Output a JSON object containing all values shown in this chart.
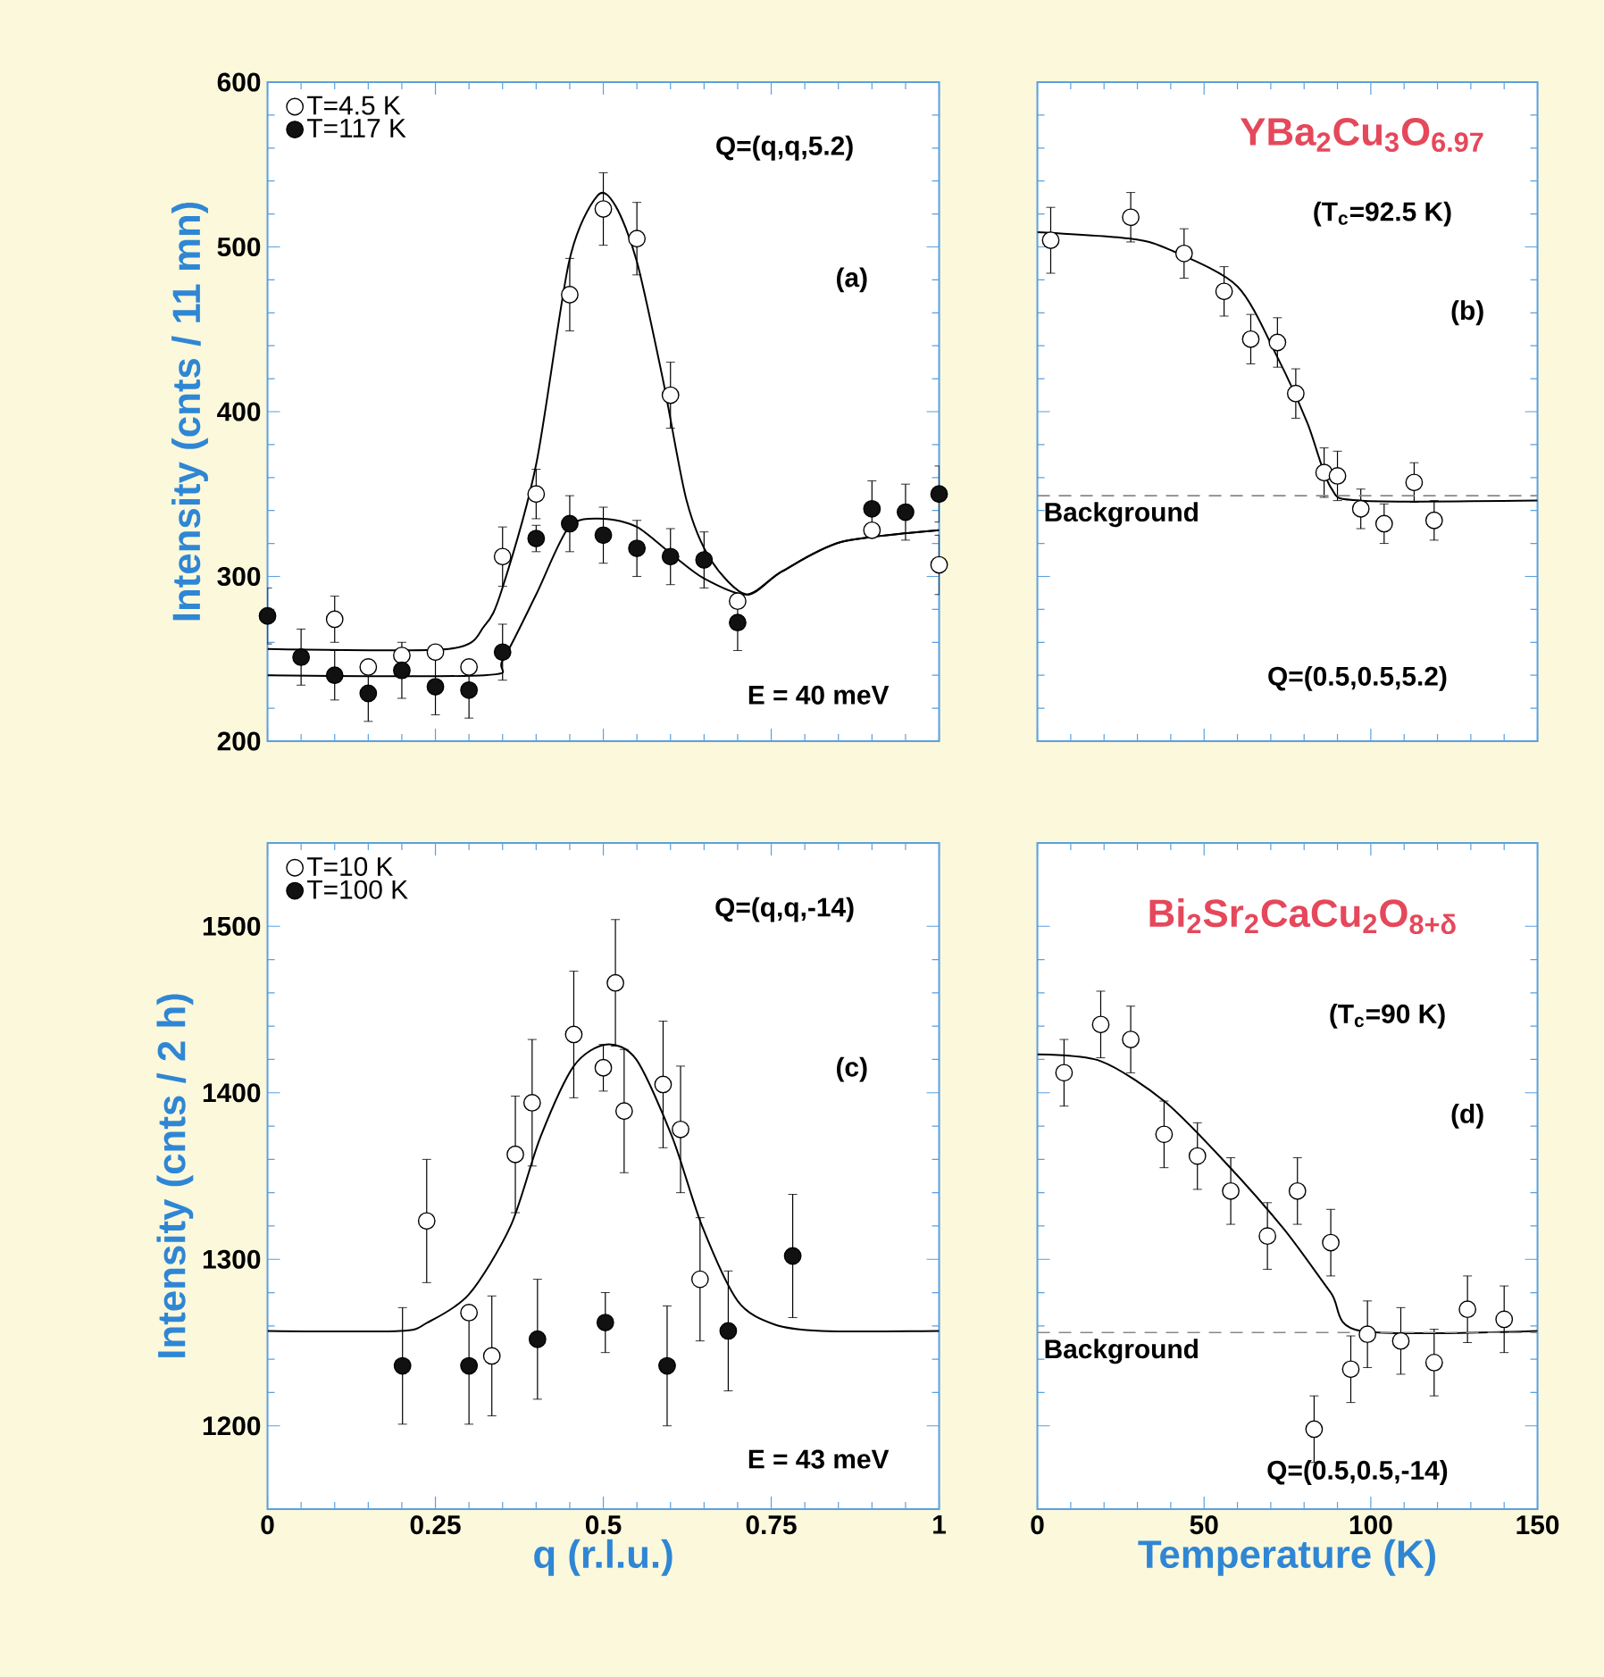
{
  "chart_data": [
    {
      "type": "scatter",
      "xlim": [
        0,
        1
      ],
      "xticks": [
        0,
        0.25,
        0.5,
        0.75,
        1
      ],
      "ylim": [
        200,
        600
      ],
      "yticks": [
        200,
        300,
        400,
        500,
        600
      ],
      "tick_labels": "y",
      "ylabel": "Intensity (cnts / 11 mn)",
      "legend": "top left",
      "marker": "circle",
      "annotations": [
        "Q=(q,q,5.2)",
        "(a)",
        "E = 40 meV"
      ],
      "series": [
        {
          "name": "T=4.5 K",
          "color": "#ffffff",
          "x": [
            0.1,
            0.15,
            0.2,
            0.25,
            0.3,
            0.35,
            0.4,
            0.45,
            0.5,
            0.55,
            0.6,
            0.7,
            0.9,
            1.0
          ],
          "values": [
            274,
            245,
            252,
            254,
            245,
            312,
            350,
            471,
            523,
            505,
            410,
            285,
            328,
            307
          ],
          "errors": [
            14,
            null,
            null,
            null,
            null,
            18,
            15,
            22,
            22,
            22,
            20,
            null,
            null,
            18
          ]
        },
        {
          "name": "T=117 K",
          "color": "#111111",
          "x": [
            0,
            0.05,
            0.1,
            0.15,
            0.2,
            0.25,
            0.3,
            0.35,
            0.4,
            0.45,
            0.5,
            0.55,
            0.6,
            0.65,
            0.7,
            0.9,
            0.95,
            1.0
          ],
          "values": [
            276,
            251,
            240,
            229,
            243,
            233,
            231,
            254,
            323,
            332,
            325,
            317,
            312,
            310,
            272,
            341,
            339,
            350
          ],
          "errors": [
            17,
            17,
            15,
            17,
            17,
            17,
            17,
            17,
            8,
            17,
            17,
            17,
            17,
            17,
            17,
            17,
            17,
            17
          ]
        },
        {
          "type": "line",
          "color": "#000000",
          "marker": "none",
          "x": [
            0,
            0.27,
            0.323,
            0.349,
            0.4,
            0.449,
            0.491,
            0.518,
            0.55,
            0.589,
            0.624,
            0.66,
            0.713,
            0.766,
            0.855,
            1
          ],
          "values": [
            256,
            256,
            270,
            292,
            368,
            491,
            531,
            525,
            491,
            419,
            346,
            310,
            289,
            303,
            321,
            328
          ]
        },
        {
          "type": "line",
          "color": "#000000",
          "marker": "none",
          "x": [
            0,
            0.323,
            0.35,
            0.4,
            0.449,
            0.5,
            0.55,
            0.6,
            0.649,
            0.713,
            0.766,
            0.855,
            1
          ],
          "values": [
            240,
            240,
            249,
            289,
            330,
            335,
            330,
            314,
            299,
            289,
            303,
            321,
            328
          ]
        }
      ]
    },
    {
      "type": "scatter",
      "title": "YBa$_{2}$Cu$_{3}$O$_{6.97}$",
      "xlim": [
        0,
        150
      ],
      "xticks": [
        0,
        50,
        100,
        150
      ],
      "ylim": [
        200,
        600
      ],
      "yticks": [
        200,
        300,
        400,
        500,
        600
      ],
      "tick_labels": false,
      "marker": "circle",
      "annotations": [
        "(T$_{c}$=92.5 K)",
        "(b)",
        "Q=(0.5,0.5,5.2)"
      ],
      "ref_lines": [
        {
          "axis": "y",
          "value": 349,
          "label": "Background",
          "line_style": "dashed",
          "color": "#888888"
        }
      ],
      "series": [
        {
          "color": "#ffffff",
          "x": [
            4,
            28,
            44,
            56,
            64,
            72,
            77.5,
            86,
            90,
            97,
            104,
            113,
            119
          ],
          "values": [
            504,
            518,
            496,
            473,
            444,
            442,
            411,
            363,
            361,
            341,
            332,
            357,
            334
          ],
          "errors": [
            20,
            15,
            15,
            15,
            15,
            15,
            15,
            15,
            15,
            12,
            12,
            12,
            12
          ]
        },
        {
          "type": "line",
          "color": "#000000",
          "marker": "none",
          "x": [
            0,
            28,
            40,
            60,
            72,
            81,
            88,
            97,
            150
          ],
          "values": [
            509,
            505,
            498,
            476,
            433,
            393,
            354,
            346,
            346
          ]
        }
      ]
    },
    {
      "type": "scatter",
      "xlim": [
        0,
        1
      ],
      "xticks": [
        0,
        0.25,
        0.5,
        0.75,
        1
      ],
      "ylim": [
        1150,
        1550
      ],
      "yticks": [
        1200,
        1300,
        1400,
        1500
      ],
      "xlabel": "q (r.l.u.)",
      "ylabel": "Intensity (cnts / 2 h)",
      "legend": "top left",
      "marker": "circle",
      "annotations": [
        "Q=(q,q,-14)",
        "(c)",
        "E = 43 meV"
      ],
      "series": [
        {
          "name": "T=10 K",
          "color": "#ffffff",
          "x": [
            0.237,
            0.3,
            0.334,
            0.369,
            0.394,
            0.456,
            0.5,
            0.518,
            0.531,
            0.589,
            0.615,
            0.644
          ],
          "values": [
            1323,
            1268,
            1242,
            1363,
            1394,
            1435,
            1415,
            1466,
            1389,
            1405,
            1378,
            1288
          ],
          "errors": [
            37,
            null,
            36,
            35,
            38,
            38,
            14,
            38,
            37,
            38,
            38,
            37
          ]
        },
        {
          "name": "T=100 K",
          "color": "#111111",
          "x": [
            0.201,
            0.3,
            0.402,
            0.503,
            0.595,
            0.686,
            0.782
          ],
          "values": [
            1236,
            1236,
            1252,
            1262,
            1236,
            1257,
            1302
          ],
          "errors": [
            35,
            35,
            36,
            18,
            36,
            36,
            37
          ]
        },
        {
          "type": "line",
          "color": "#000000",
          "marker": "none",
          "x": [
            0,
            0.196,
            0.238,
            0.3,
            0.362,
            0.406,
            0.456,
            0.504,
            0.549,
            0.603,
            0.647,
            0.7,
            0.754,
            0.825,
            1
          ],
          "values": [
            1257,
            1257,
            1262,
            1279,
            1320,
            1373,
            1416,
            1429,
            1420,
            1373,
            1320,
            1275,
            1261,
            1257,
            1257
          ]
        }
      ]
    },
    {
      "type": "scatter",
      "title": "Bi$_{2}$Sr$_{2}$CaCu$_{2}$O$_{8+δ}$",
      "xlim": [
        0,
        150
      ],
      "xticks": [
        0,
        50,
        100,
        150
      ],
      "ylim": [
        1150,
        1550
      ],
      "yticks": [
        1200,
        1300,
        1400,
        1500
      ],
      "tick_labels": "x",
      "xlabel": "Temperature (K)",
      "marker": "circle",
      "annotations": [
        "(T$_{c}$=90 K)",
        "(d)",
        "Q=(0.5,0.5,-14)"
      ],
      "ref_lines": [
        {
          "axis": "y",
          "value": 1256,
          "label": "Background",
          "line_style": "dashed",
          "color": "#888888"
        }
      ],
      "series": [
        {
          "color": "#ffffff",
          "x": [
            8,
            19,
            28,
            38,
            48,
            58,
            69,
            78,
            88,
            83,
            94,
            99,
            109,
            119,
            129,
            140
          ],
          "values": [
            1412,
            1441,
            1432,
            1375,
            1362,
            1341,
            1314,
            1341,
            1310,
            1198,
            1234,
            1255,
            1251,
            1238,
            1270,
            1264
          ],
          "errors": [
            20,
            20,
            20,
            20,
            20,
            20,
            20,
            20,
            20,
            20,
            20,
            20,
            20,
            20,
            20,
            20
          ]
        },
        {
          "type": "line",
          "color": "#000000",
          "marker": "none",
          "x": [
            0,
            19,
            38,
            56,
            74,
            88,
            97,
            150
          ],
          "values": [
            1423,
            1419,
            1395,
            1359,
            1318,
            1280,
            1257,
            1257
          ]
        }
      ]
    }
  ]
}
